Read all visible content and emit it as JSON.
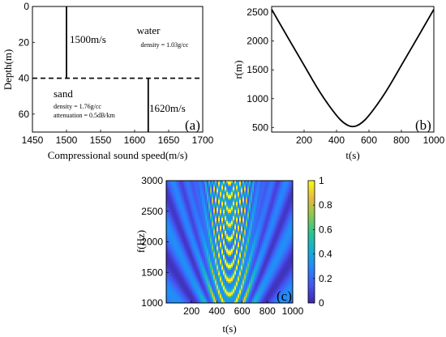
{
  "chart_data": [
    {
      "type": "line",
      "panel_label": "(a)",
      "xlabel": "Compressional sound speed(m/s)",
      "ylabel": "Depth(m)",
      "xlim": [
        1450,
        1700
      ],
      "ylim": [
        70,
        0
      ],
      "x_ticks": [
        1450,
        1500,
        1550,
        1600,
        1650,
        1700
      ],
      "y_ticks": [
        0,
        20,
        40,
        60
      ],
      "interface_depth": 40,
      "series": [
        {
          "x": [
            1500,
            1500
          ],
          "y": [
            0,
            40
          ]
        },
        {
          "x": [
            1620,
            1620
          ],
          "y": [
            40,
            70
          ]
        }
      ],
      "annotations": {
        "water_speed": "1500m/s",
        "water": "water",
        "water_density": "density = 1.03g/cc",
        "sand": "sand",
        "sand_density": "density = 1.76g/cc",
        "sand_attenuation": "attenuation = 0.5dB/km",
        "sand_speed": "1620m/s"
      }
    },
    {
      "type": "line",
      "panel_label": "(b)",
      "xlabel": "t(s)",
      "ylabel": "r(m)",
      "xlim": [
        0,
        1000
      ],
      "ylim": [
        420,
        2600
      ],
      "x_ticks": [
        200,
        400,
        600,
        800,
        1000
      ],
      "y_ticks": [
        500,
        1000,
        1500,
        2000,
        2500
      ],
      "series": [
        {
          "x": [
            0,
            100,
            200,
            300,
            400,
            450,
            500,
            550,
            600,
            700,
            800,
            900,
            1000
          ],
          "y": [
            2550,
            2060,
            1580,
            1090,
            700,
            560,
            500,
            560,
            700,
            1090,
            1580,
            2060,
            2550
          ]
        }
      ]
    },
    {
      "type": "heatmap",
      "panel_label": "(c)",
      "xlabel": "t(s)",
      "ylabel": "f(Hz)",
      "xlim": [
        0,
        1000
      ],
      "ylim": [
        1000,
        3000
      ],
      "x_ticks": [
        200,
        400,
        600,
        800,
        1000
      ],
      "y_ticks": [
        1000,
        1500,
        2000,
        2500,
        3000
      ],
      "colorbar_ticks": [
        0,
        0.2,
        0.4,
        0.6,
        0.8,
        1
      ],
      "colorbar_range": [
        0,
        1
      ],
      "colormap": [
        "#3e26a8",
        "#4653f1",
        "#2586fc",
        "#15aed7",
        "#2ac491",
        "#8bc94f",
        "#e8ba3f",
        "#f9fb15"
      ],
      "center_t": 500,
      "min_range_m": 500,
      "max_range_m": 2550
    }
  ]
}
